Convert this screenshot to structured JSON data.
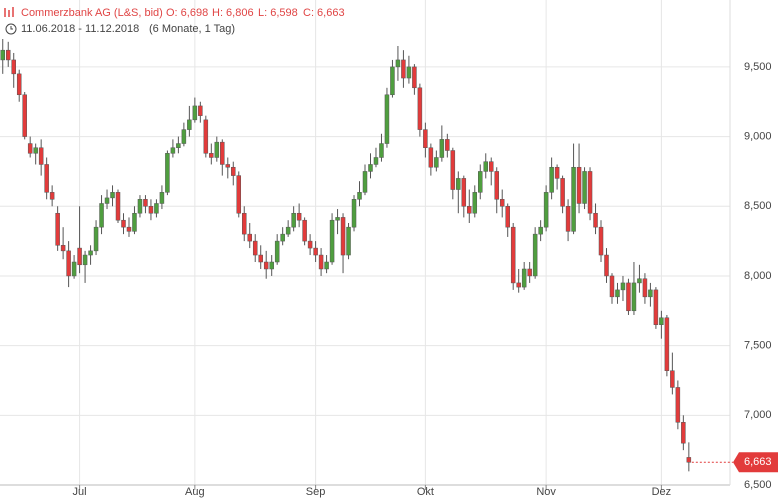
{
  "header": {
    "name": "Commerzbank AG (L&S, bid)",
    "open": "O: 6,698",
    "high": "H: 6,806",
    "low": "L: 6,598",
    "close": "C: 6,663",
    "range": "11.06.2018 - 11.12.2018",
    "period": "(6 Monate, 1 Tag)"
  },
  "chart_data": {
    "type": "candlestick",
    "open": [
      9.55,
      9.62,
      9.55,
      9.45,
      9.3,
      8.95,
      8.88,
      8.92,
      8.8,
      8.6,
      8.45,
      8.22,
      8.18,
      8.0,
      8.2,
      8.08,
      8.15,
      8.18,
      8.35,
      8.52,
      8.56,
      8.6,
      8.4,
      8.35,
      8.32,
      8.45,
      8.55,
      8.5,
      8.45,
      8.52,
      8.6,
      8.88,
      8.92,
      8.95,
      9.05,
      9.12,
      9.22,
      9.12,
      8.88,
      8.85,
      8.96,
      8.8,
      8.78,
      8.72,
      8.45,
      8.3,
      8.25,
      8.15,
      8.1,
      8.05,
      8.1,
      8.25,
      8.3,
      8.35,
      8.45,
      8.4,
      8.25,
      8.2,
      8.15,
      8.05,
      8.1,
      8.4,
      8.42,
      8.15,
      8.35,
      8.55,
      8.6,
      8.75,
      8.8,
      8.85,
      8.95,
      9.3,
      9.5,
      9.55,
      9.42,
      9.5,
      9.35,
      9.05,
      8.92,
      8.78,
      8.85,
      8.98,
      8.9,
      8.62,
      8.7,
      8.5,
      8.45,
      8.6,
      8.75,
      8.82,
      8.75,
      8.55,
      8.5,
      8.35,
      7.95,
      7.92,
      8.05,
      8.0,
      8.3,
      8.35,
      8.6,
      8.78,
      8.7,
      8.5,
      8.32,
      8.78,
      8.52,
      8.75,
      8.45,
      8.35,
      8.15,
      8.0,
      7.85,
      7.9,
      7.95,
      7.75,
      7.95,
      7.98,
      7.85,
      7.9,
      7.65,
      7.7,
      7.32,
      7.2,
      6.95,
      6.698
    ],
    "high": [
      9.7,
      9.68,
      9.6,
      9.48,
      9.32,
      9.0,
      8.95,
      8.98,
      8.85,
      8.65,
      8.5,
      8.35,
      8.25,
      8.15,
      8.5,
      8.18,
      8.22,
      8.4,
      8.58,
      8.62,
      8.65,
      8.62,
      8.45,
      8.42,
      8.5,
      8.58,
      8.58,
      8.55,
      8.55,
      8.65,
      8.9,
      8.98,
      9.0,
      9.1,
      9.22,
      9.28,
      9.25,
      9.15,
      8.95,
      9.0,
      8.98,
      8.85,
      8.82,
      8.75,
      8.5,
      8.38,
      8.3,
      8.22,
      8.18,
      8.15,
      8.3,
      8.35,
      8.4,
      8.5,
      8.52,
      8.42,
      8.3,
      8.25,
      8.2,
      8.15,
      8.45,
      8.48,
      8.45,
      8.38,
      8.58,
      8.68,
      8.8,
      8.88,
      8.92,
      9.02,
      9.35,
      9.55,
      9.65,
      9.62,
      9.58,
      9.52,
      9.38,
      9.1,
      8.95,
      8.9,
      9.08,
      9.02,
      8.92,
      8.75,
      8.72,
      8.62,
      8.65,
      8.8,
      8.88,
      8.85,
      8.78,
      8.62,
      8.52,
      8.38,
      8.05,
      8.1,
      8.1,
      8.35,
      8.4,
      8.65,
      8.85,
      8.8,
      8.72,
      8.55,
      8.95,
      8.95,
      8.78,
      8.78,
      8.52,
      8.4,
      8.2,
      8.02,
      7.95,
      8.0,
      7.98,
      8.1,
      8.08,
      8.02,
      7.95,
      7.92,
      7.75,
      7.72,
      7.45,
      7.25,
      7.0,
      6.806
    ],
    "low": [
      9.45,
      9.5,
      9.35,
      9.25,
      8.98,
      8.85,
      8.8,
      8.72,
      8.55,
      8.5,
      8.18,
      8.12,
      7.92,
      7.98,
      8.02,
      7.95,
      8.08,
      8.15,
      8.3,
      8.48,
      8.5,
      8.38,
      8.3,
      8.28,
      8.3,
      8.42,
      8.45,
      8.4,
      8.42,
      8.48,
      8.58,
      8.85,
      8.88,
      8.93,
      9.0,
      9.1,
      9.1,
      8.85,
      8.8,
      8.82,
      8.72,
      8.7,
      8.65,
      8.42,
      8.25,
      8.2,
      8.1,
      8.05,
      7.98,
      8.0,
      8.08,
      8.22,
      8.28,
      8.32,
      8.35,
      8.22,
      8.15,
      8.1,
      8.0,
      8.02,
      8.08,
      8.3,
      8.02,
      8.12,
      8.32,
      8.5,
      8.58,
      8.7,
      8.78,
      8.82,
      8.92,
      9.28,
      9.4,
      9.35,
      9.38,
      9.3,
      9.0,
      8.85,
      8.72,
      8.75,
      8.82,
      8.85,
      8.55,
      8.45,
      8.42,
      8.38,
      8.42,
      8.55,
      8.7,
      8.65,
      8.45,
      8.42,
      8.28,
      7.9,
      7.88,
      7.9,
      7.95,
      7.98,
      8.25,
      8.32,
      8.55,
      8.62,
      8.45,
      8.25,
      8.3,
      8.45,
      8.48,
      8.4,
      8.3,
      8.1,
      7.95,
      7.8,
      7.8,
      7.82,
      7.72,
      7.72,
      7.88,
      7.8,
      7.78,
      7.62,
      7.55,
      7.28,
      7.15,
      6.9,
      6.75,
      6.598
    ],
    "close": [
      9.62,
      9.55,
      9.45,
      9.3,
      9.0,
      8.88,
      8.92,
      8.8,
      8.6,
      8.55,
      8.22,
      8.18,
      8.0,
      8.1,
      8.08,
      8.15,
      8.18,
      8.35,
      8.52,
      8.56,
      8.6,
      8.4,
      8.35,
      8.32,
      8.45,
      8.55,
      8.5,
      8.45,
      8.52,
      8.6,
      8.88,
      8.92,
      8.95,
      9.05,
      9.12,
      9.22,
      9.15,
      8.88,
      8.85,
      8.96,
      8.8,
      8.78,
      8.72,
      8.45,
      8.3,
      8.25,
      8.15,
      8.1,
      8.05,
      8.1,
      8.25,
      8.3,
      8.35,
      8.45,
      8.4,
      8.25,
      8.2,
      8.15,
      8.05,
      8.1,
      8.4,
      8.42,
      8.15,
      8.35,
      8.55,
      8.6,
      8.75,
      8.8,
      8.85,
      8.95,
      9.3,
      9.5,
      9.55,
      9.42,
      9.5,
      9.35,
      9.05,
      8.92,
      8.78,
      8.85,
      8.98,
      8.9,
      8.62,
      8.7,
      8.5,
      8.45,
      8.6,
      8.75,
      8.82,
      8.75,
      8.55,
      8.5,
      8.35,
      7.95,
      7.92,
      8.05,
      8.0,
      8.3,
      8.35,
      8.6,
      8.78,
      8.7,
      8.5,
      8.32,
      8.78,
      8.52,
      8.75,
      8.45,
      8.35,
      8.15,
      8.0,
      7.85,
      7.9,
      7.95,
      7.75,
      7.95,
      7.98,
      7.85,
      7.9,
      7.65,
      7.7,
      7.32,
      7.2,
      6.95,
      6.8,
      6.663
    ],
    "last_label": "6,663",
    "up_color": "#4f9e3f",
    "down_color": "#e23b3b",
    "ylim": [
      6.5,
      9.98
    ],
    "yticks": [
      {
        "value": 6.5,
        "label": "6,500"
      },
      {
        "value": 7,
        "label": "7,000"
      },
      {
        "value": 7.5,
        "label": "7,500"
      },
      {
        "value": 8,
        "label": "8,000"
      },
      {
        "value": 8.5,
        "label": "8,500"
      },
      {
        "value": 9,
        "label": "9,000"
      },
      {
        "value": 9.5,
        "label": "9,500"
      }
    ],
    "xlim": [
      -0.5,
      132.5
    ],
    "xticks": [
      {
        "value": 14,
        "label": "Jul"
      },
      {
        "value": 35,
        "label": "Aug"
      },
      {
        "value": 57,
        "label": "Sep"
      },
      {
        "value": 77,
        "label": "Okt"
      },
      {
        "value": 99,
        "label": "Nov"
      },
      {
        "value": 120,
        "label": "Dez"
      }
    ],
    "grid": true
  }
}
